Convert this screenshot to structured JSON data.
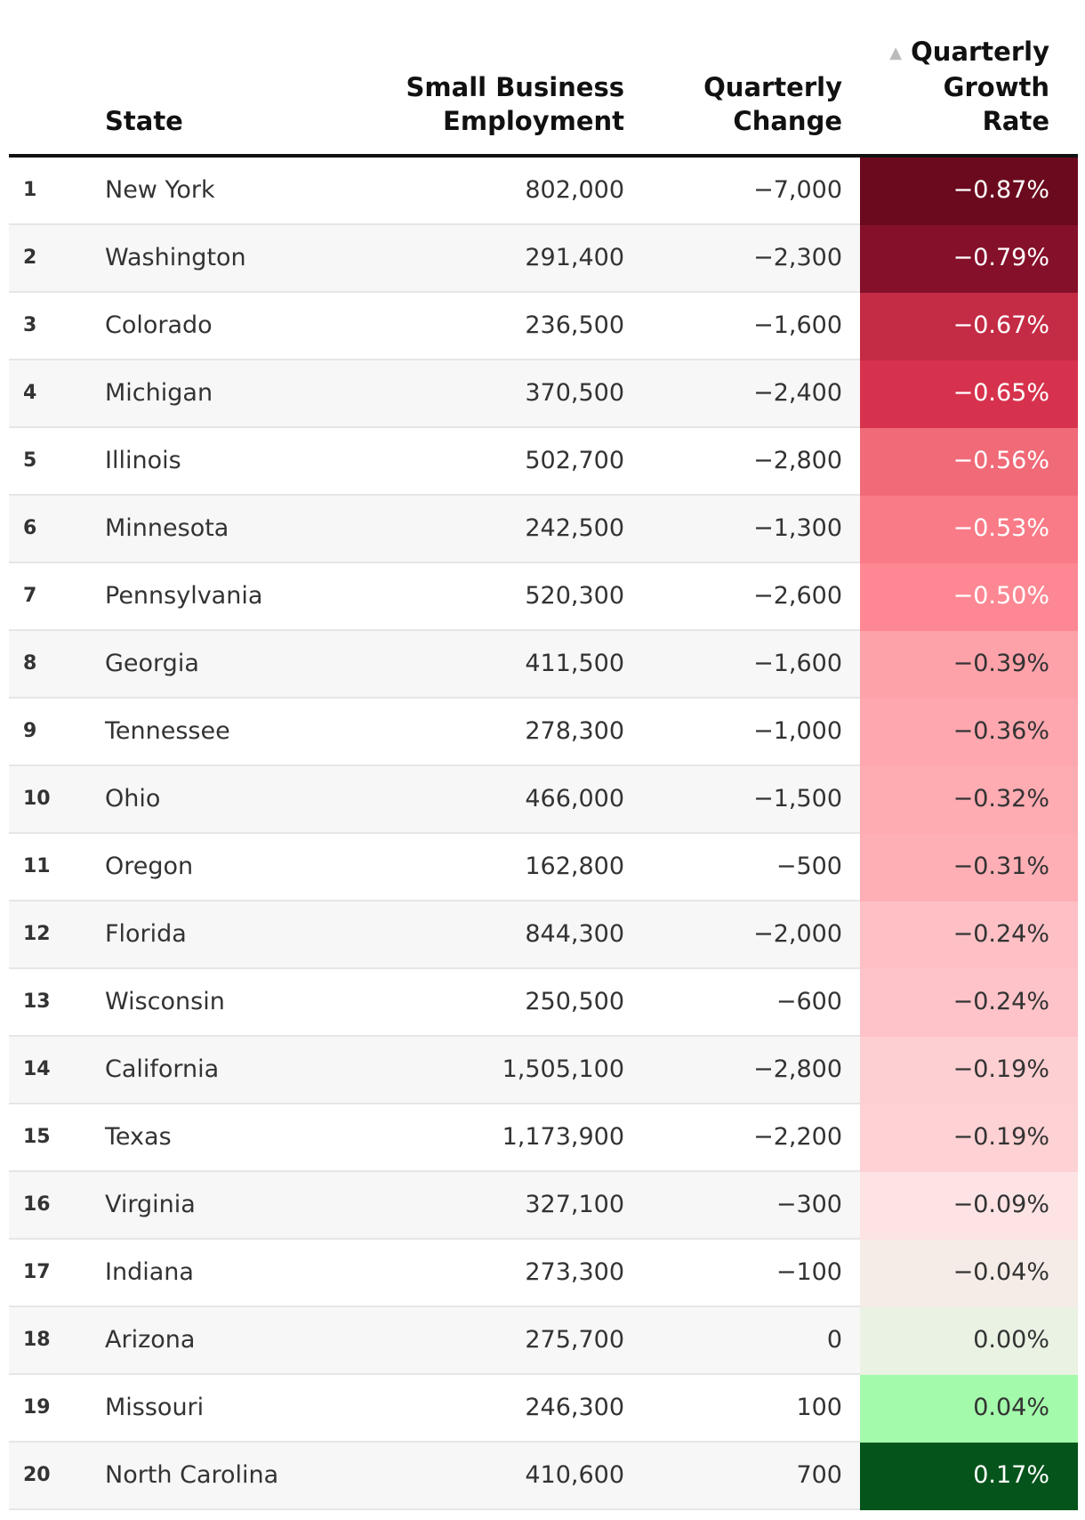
{
  "chart_data": {
    "type": "table",
    "columns": {
      "rank": "",
      "state": "State",
      "employment": [
        "Small Business",
        "Employment"
      ],
      "change": [
        "Quarterly",
        "Change"
      ],
      "rate": [
        "Quarterly",
        "Growth",
        "Rate"
      ]
    },
    "sort_icon": "triangle-up-icon",
    "sort_indicator": "▲",
    "rows": [
      {
        "rank": "1",
        "state": "New York",
        "employment": "802,000",
        "change": "−7,000",
        "rate": "−0.87%",
        "value": -0.87
      },
      {
        "rank": "2",
        "state": "Washington",
        "employment": "291,400",
        "change": "−2,300",
        "rate": "−0.79%",
        "value": -0.79
      },
      {
        "rank": "3",
        "state": "Colorado",
        "employment": "236,500",
        "change": "−1,600",
        "rate": "−0.67%",
        "value": -0.67
      },
      {
        "rank": "4",
        "state": "Michigan",
        "employment": "370,500",
        "change": "−2,400",
        "rate": "−0.65%",
        "value": -0.65
      },
      {
        "rank": "5",
        "state": "Illinois",
        "employment": "502,700",
        "change": "−2,800",
        "rate": "−0.56%",
        "value": -0.56
      },
      {
        "rank": "6",
        "state": "Minnesota",
        "employment": "242,500",
        "change": "−1,300",
        "rate": "−0.53%",
        "value": -0.53
      },
      {
        "rank": "7",
        "state": "Pennsylvania",
        "employment": "520,300",
        "change": "−2,600",
        "rate": "−0.50%",
        "value": -0.5
      },
      {
        "rank": "8",
        "state": "Georgia",
        "employment": "411,500",
        "change": "−1,600",
        "rate": "−0.39%",
        "value": -0.39
      },
      {
        "rank": "9",
        "state": "Tennessee",
        "employment": "278,300",
        "change": "−1,000",
        "rate": "−0.36%",
        "value": -0.36
      },
      {
        "rank": "10",
        "state": "Ohio",
        "employment": "466,000",
        "change": "−1,500",
        "rate": "−0.32%",
        "value": -0.32
      },
      {
        "rank": "11",
        "state": "Oregon",
        "employment": "162,800",
        "change": "−500",
        "rate": "−0.31%",
        "value": -0.31
      },
      {
        "rank": "12",
        "state": "Florida",
        "employment": "844,300",
        "change": "−2,000",
        "rate": "−0.24%",
        "value": -0.24
      },
      {
        "rank": "13",
        "state": "Wisconsin",
        "employment": "250,500",
        "change": "−600",
        "rate": "−0.24%",
        "value": -0.24
      },
      {
        "rank": "14",
        "state": "California",
        "employment": "1,505,100",
        "change": "−2,800",
        "rate": "−0.19%",
        "value": -0.19
      },
      {
        "rank": "15",
        "state": "Texas",
        "employment": "1,173,900",
        "change": "−2,200",
        "rate": "−0.19%",
        "value": -0.19
      },
      {
        "rank": "16",
        "state": "Virginia",
        "employment": "327,100",
        "change": "−300",
        "rate": "−0.09%",
        "value": -0.09
      },
      {
        "rank": "17",
        "state": "Indiana",
        "employment": "273,300",
        "change": "−100",
        "rate": "−0.04%",
        "value": -0.04
      },
      {
        "rank": "18",
        "state": "Arizona",
        "employment": "275,700",
        "change": "0",
        "rate": "0.00%",
        "value": 0.0
      },
      {
        "rank": "19",
        "state": "Missouri",
        "employment": "246,300",
        "change": "100",
        "rate": "0.04%",
        "value": 0.04
      },
      {
        "rank": "20",
        "state": "North Carolina",
        "employment": "410,600",
        "change": "700",
        "rate": "0.17%",
        "value": 0.17
      }
    ],
    "heatmap_colors": [
      "#6b0a1e",
      "#85102a",
      "#c42b45",
      "#d7324d",
      "#f06a78",
      "#f97b87",
      "#fd8893",
      "#fea2aa",
      "#fea7ae",
      "#feabb2",
      "#feafb5",
      "#fec0c5",
      "#fec3c8",
      "#fecfd2",
      "#fed1d4",
      "#fde3e4",
      "#f5ebe7",
      "#e9f2e3",
      "#a3faab",
      "#04541b"
    ],
    "heatmap_text_colors": [
      "#ffffff",
      "#ffffff",
      "#ffffff",
      "#ffffff",
      "#ffffff",
      "#ffffff",
      "#ffffff",
      "#333333",
      "#333333",
      "#333333",
      "#333333",
      "#333333",
      "#333333",
      "#333333",
      "#333333",
      "#333333",
      "#333333",
      "#333333",
      "#333333",
      "#ffffff"
    ]
  }
}
